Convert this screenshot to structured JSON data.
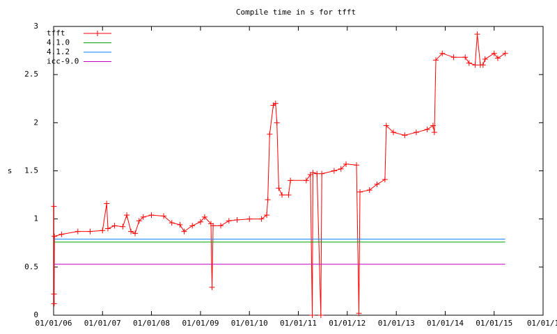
{
  "chart_data": {
    "type": "line",
    "title": "Compile time in s for tfft",
    "ylabel": "s",
    "xlim": [
      "2006-01-01",
      "2016-01-01"
    ],
    "xticks": [
      {
        "value": "2006-01-01",
        "label": "01/01/06"
      },
      {
        "value": "2007-01-01",
        "label": "01/01/07"
      },
      {
        "value": "2008-01-01",
        "label": "01/01/08"
      },
      {
        "value": "2009-01-01",
        "label": "01/01/09"
      },
      {
        "value": "2010-01-01",
        "label": "01/01/10"
      },
      {
        "value": "2011-01-01",
        "label": "01/01/11"
      },
      {
        "value": "2012-01-01",
        "label": "01/01/12"
      },
      {
        "value": "2013-01-01",
        "label": "01/01/13"
      },
      {
        "value": "2014-01-01",
        "label": "01/01/14"
      },
      {
        "value": "2015-01-01",
        "label": "01/01/15"
      },
      {
        "value": "2016-01-01",
        "label": "01/01/1"
      }
    ],
    "ylim": [
      0,
      3
    ],
    "yticks": [
      0,
      0.5,
      1,
      1.5,
      2,
      2.5,
      3
    ],
    "legend": "top-left",
    "series": [
      {
        "name": "tfft",
        "color": "#ff0000",
        "markers": true,
        "x": [
          "2006-01-03",
          "2006-01-04",
          "2006-01-05",
          "2006-01-07",
          "2006-03-01",
          "2006-07-01",
          "2006-10-01",
          "2007-01-01",
          "2007-02-01",
          "2007-02-10",
          "2007-04-01",
          "2007-06-01",
          "2007-07-01",
          "2007-08-01",
          "2007-09-01",
          "2007-10-01",
          "2007-11-01",
          "2008-01-01",
          "2008-04-01",
          "2008-06-01",
          "2008-08-01",
          "2008-09-01",
          "2008-11-01",
          "2009-01-01",
          "2009-02-01",
          "2009-03-20",
          "2009-03-28",
          "2009-04-05",
          "2009-06-01",
          "2009-08-01",
          "2009-10-01",
          "2010-01-01",
          "2010-04-01",
          "2010-05-10",
          "2010-05-18",
          "2010-06-01",
          "2010-06-28",
          "2010-07-15",
          "2010-07-25",
          "2010-08-08",
          "2010-09-01",
          "2010-10-20",
          "2010-11-03",
          "2011-03-01",
          "2011-04-01",
          "2011-04-15",
          "2011-04-20",
          "2011-05-20",
          "2011-06-18",
          "2011-06-25",
          "2011-09-25",
          "2011-11-15",
          "2011-12-23",
          "2012-03-10",
          "2012-03-28",
          "2012-04-05",
          "2012-06-15",
          "2012-08-10",
          "2012-10-08",
          "2012-10-18",
          "2012-12-10",
          "2013-03-05",
          "2013-05-30",
          "2013-08-20",
          "2013-10-02",
          "2013-10-12",
          "2013-10-23",
          "2013-12-10",
          "2014-03-05",
          "2014-05-30",
          "2014-06-28",
          "2014-08-12",
          "2014-08-28",
          "2014-09-20",
          "2014-10-10",
          "2014-10-25",
          "2015-01-01",
          "2015-01-28",
          "2015-03-25"
        ],
        "values": [
          1.13,
          0.22,
          0.12,
          0.82,
          0.84,
          0.87,
          0.87,
          0.88,
          1.16,
          0.9,
          0.93,
          0.92,
          1.04,
          0.87,
          0.85,
          0.98,
          1.02,
          1.04,
          1.03,
          0.96,
          0.94,
          0.87,
          0.93,
          0.97,
          1.02,
          0.95,
          0.29,
          0.93,
          0.93,
          0.98,
          0.99,
          1.0,
          1.0,
          1.04,
          1.2,
          1.88,
          2.18,
          2.2,
          2.0,
          1.32,
          1.25,
          1.25,
          1.4,
          1.4,
          1.46,
          0,
          1.48,
          1.47,
          0,
          1.47,
          1.5,
          1.52,
          1.57,
          1.56,
          0.02,
          1.28,
          1.3,
          1.36,
          1.41,
          1.97,
          1.9,
          1.87,
          1.9,
          1.93,
          1.97,
          1.9,
          2.65,
          2.72,
          2.68,
          2.68,
          2.62,
          2.6,
          2.92,
          2.6,
          2.6,
          2.66,
          2.72,
          2.67,
          2.72
        ]
      },
      {
        "name": "4.1.0",
        "color": "#00a000",
        "x": [
          "2006-01-05",
          "2015-03-25"
        ],
        "values": [
          0.76,
          0.76
        ]
      },
      {
        "name": "4.1.2",
        "color": "#0080ff",
        "x": [
          "2006-01-05",
          "2015-03-25"
        ],
        "values": [
          0.79,
          0.79
        ]
      },
      {
        "name": "icc-9.0",
        "color": "#c000c0",
        "x": [
          "2006-01-05",
          "2015-03-25"
        ],
        "values": [
          0.53,
          0.53
        ]
      }
    ]
  }
}
